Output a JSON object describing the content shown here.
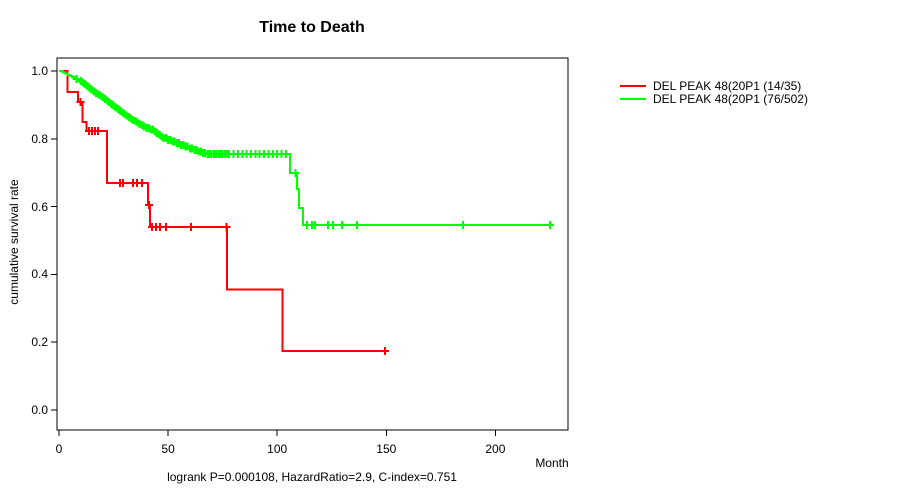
{
  "title": "Time to Death",
  "xlabel": "Month",
  "ylabel": "cumulative survival rate",
  "caption": "logrank P=0.000108, HazardRatio=2.9, C-index=0.751",
  "colors": {
    "series1": "#ff0000",
    "series2": "#00ff00",
    "axis": "#000000",
    "background": "#ffffff"
  },
  "legend": [
    {
      "label": "DEL PEAK 48(20P1 (14/35)",
      "color": "#ff0000"
    },
    {
      "label": "DEL PEAK 48(20P1 (76/502)",
      "color": "#00ff00"
    }
  ],
  "axes": {
    "x_ticks": [
      0,
      50,
      100,
      150,
      200
    ],
    "y_ticks": [
      "0.0",
      "0.2",
      "0.4",
      "0.6",
      "0.8",
      "1.0"
    ]
  },
  "chart_data": {
    "type": "line",
    "subtype": "kaplan-meier-step",
    "title": "Time to Death",
    "xlabel": "Month",
    "ylabel": "cumulative survival rate",
    "xlim": [
      0,
      234
    ],
    "ylim": [
      0,
      1.0
    ],
    "grid": false,
    "legend_position": "right-outside",
    "annotation": "logrank P=0.000108, HazardRatio=2.9, C-index=0.751",
    "series": [
      {
        "name": "DEL PEAK 48(20P1 (14/35)",
        "color": "#ff0000",
        "events_total": "14/35",
        "steps": [
          [
            0,
            1.0
          ],
          [
            3.9,
            0.938
          ],
          [
            8.7,
            0.908
          ],
          [
            10.8,
            0.85
          ],
          [
            12.7,
            0.823
          ],
          [
            21.9,
            0.67
          ],
          [
            40.7,
            0.605
          ],
          [
            41.7,
            0.54
          ],
          [
            77,
            0.355
          ],
          [
            102.5,
            0.174
          ]
        ],
        "end": 149.4,
        "censors": [
          9.8,
          13.7,
          15.1,
          16.5,
          17.9,
          28,
          29.3,
          33.9,
          35.7,
          38,
          41.2,
          42.6,
          44.5,
          46.3,
          49,
          60.5,
          76.8,
          149.4
        ]
      },
      {
        "name": "DEL PEAK 48(20P1 (76/502)",
        "color": "#00ff00",
        "events_total": "76/502",
        "steps": [
          [
            0,
            1.0
          ],
          [
            1.5,
            0.996
          ],
          [
            3,
            0.992
          ],
          [
            4,
            0.988
          ],
          [
            5,
            0.985
          ],
          [
            6,
            0.982
          ],
          [
            7,
            0.979
          ],
          [
            8,
            0.976
          ],
          [
            9,
            0.973
          ],
          [
            10,
            0.97
          ],
          [
            11,
            0.966
          ],
          [
            12,
            0.961
          ],
          [
            13,
            0.956
          ],
          [
            14,
            0.95
          ],
          [
            15,
            0.945
          ],
          [
            16,
            0.94
          ],
          [
            17,
            0.935
          ],
          [
            18,
            0.931
          ],
          [
            19,
            0.927
          ],
          [
            20,
            0.923
          ],
          [
            21,
            0.918
          ],
          [
            22,
            0.913
          ],
          [
            23,
            0.908
          ],
          [
            24,
            0.903
          ],
          [
            25,
            0.898
          ],
          [
            26,
            0.893
          ],
          [
            27,
            0.888
          ],
          [
            28,
            0.883
          ],
          [
            29,
            0.878
          ],
          [
            30,
            0.873
          ],
          [
            31,
            0.868
          ],
          [
            32,
            0.864
          ],
          [
            33,
            0.86
          ],
          [
            34,
            0.856
          ],
          [
            35,
            0.852
          ],
          [
            36,
            0.848
          ],
          [
            37,
            0.844
          ],
          [
            38,
            0.84
          ],
          [
            39,
            0.836
          ],
          [
            40,
            0.832
          ],
          [
            42,
            0.827
          ],
          [
            44,
            0.822
          ],
          [
            45,
            0.817
          ],
          [
            46,
            0.812
          ],
          [
            47,
            0.807
          ],
          [
            48,
            0.802
          ],
          [
            50,
            0.797
          ],
          [
            52,
            0.792
          ],
          [
            54,
            0.787
          ],
          [
            56,
            0.782
          ],
          [
            58,
            0.777
          ],
          [
            60,
            0.772
          ],
          [
            62,
            0.767
          ],
          [
            64,
            0.762
          ],
          [
            66,
            0.758
          ],
          [
            68,
            0.755
          ],
          [
            105.9,
            0.699
          ],
          [
            109.1,
            0.652
          ],
          [
            110,
            0.596
          ],
          [
            111.8,
            0.545
          ]
        ],
        "end": 225,
        "censors": [
          8,
          10,
          11,
          12,
          13,
          14,
          15,
          16,
          17,
          18,
          19,
          20,
          21,
          22,
          23,
          24,
          25,
          26,
          27,
          28,
          29,
          30,
          31,
          32,
          33,
          34,
          35,
          36,
          37,
          38,
          39,
          40,
          41,
          42,
          43,
          44,
          45,
          46,
          47,
          48,
          49,
          50,
          51,
          52,
          53,
          54,
          55,
          56,
          57,
          58,
          59,
          60,
          61,
          62,
          63,
          64,
          65,
          66,
          67,
          68,
          69,
          70,
          71,
          72,
          73,
          74,
          75,
          76,
          77,
          78,
          80,
          82,
          84,
          86,
          88,
          90,
          92,
          94,
          96,
          98,
          100,
          102,
          104,
          108.5,
          113.7,
          116,
          117.3,
          123.3,
          125.6,
          129.7,
          136.6,
          185.2,
          225
        ]
      }
    ]
  }
}
